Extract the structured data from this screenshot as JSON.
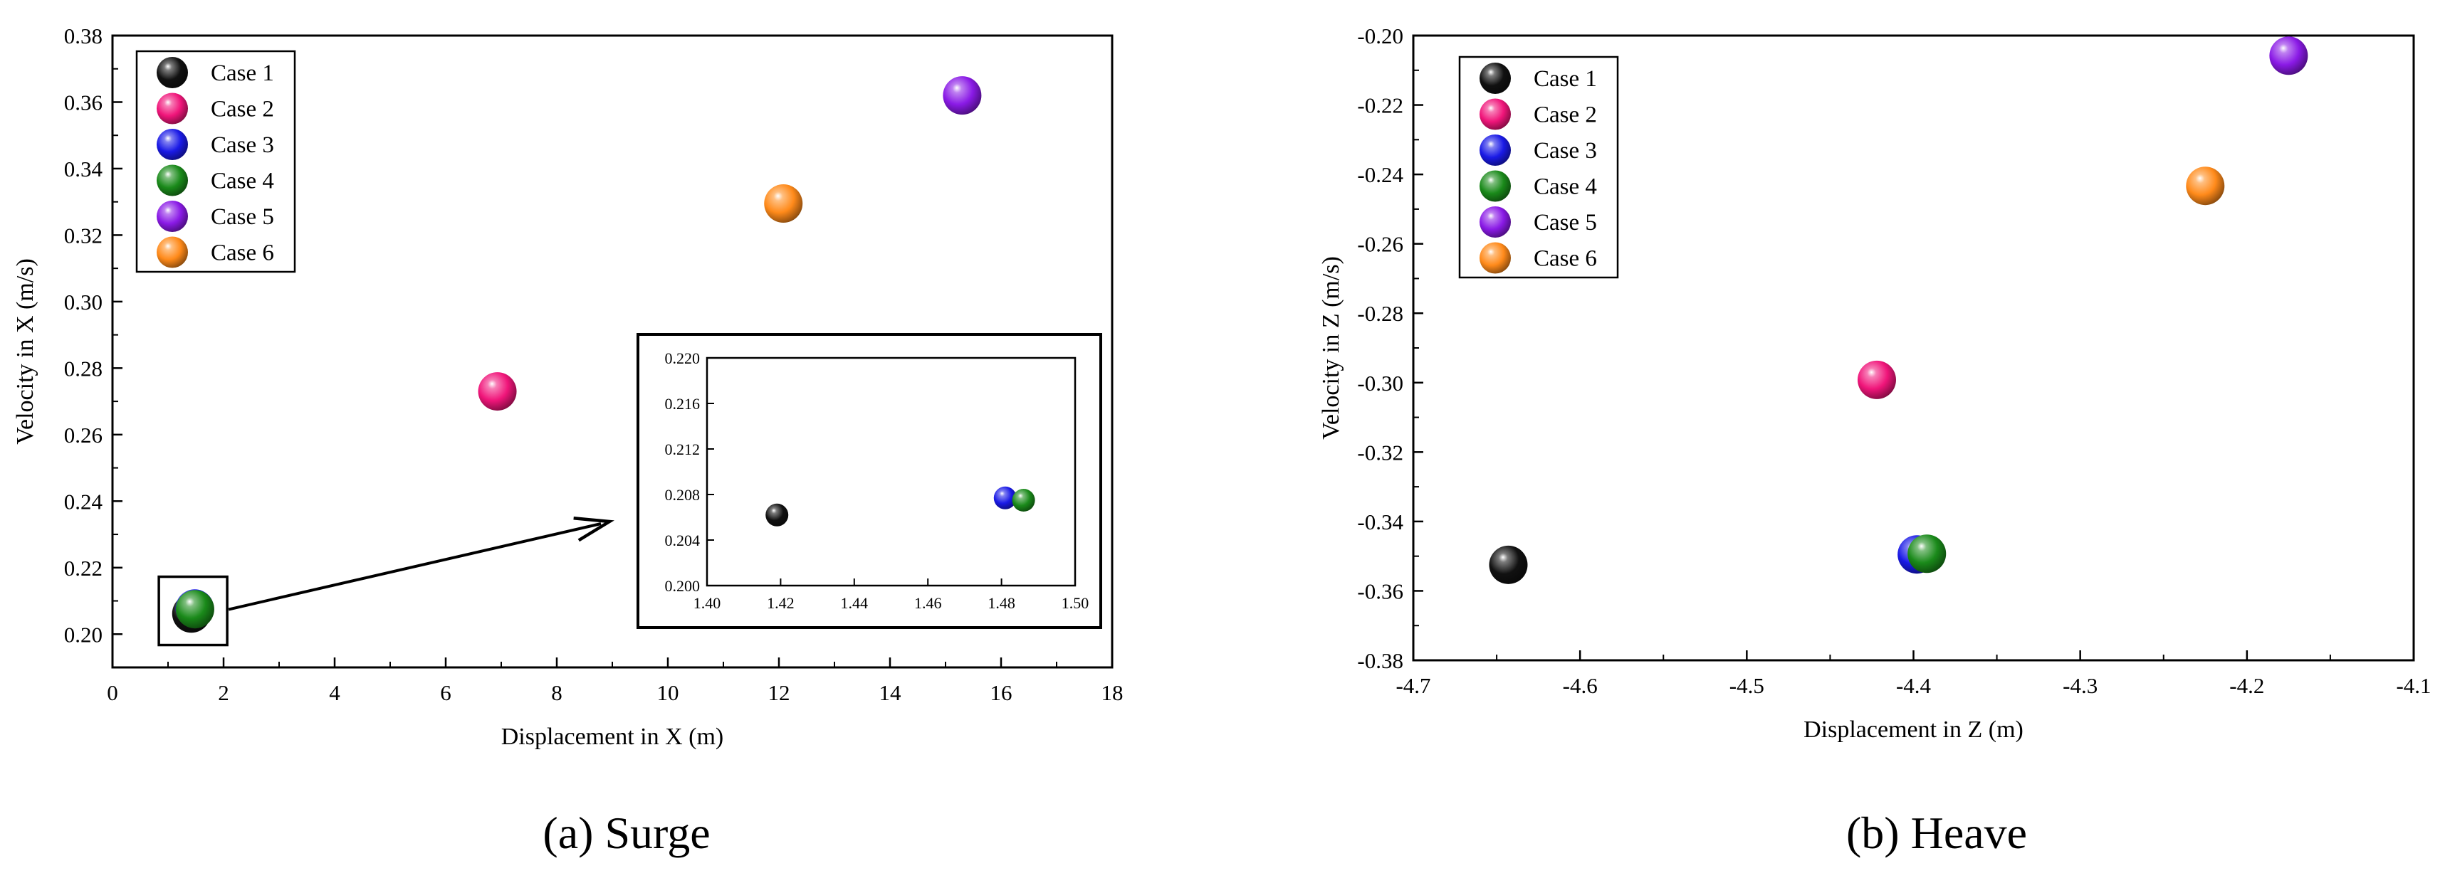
{
  "chart_data": [
    {
      "type": "scatter",
      "caption": "(a) Surge",
      "xlabel": "Displacement in X  (m)",
      "ylabel": "Velocity in X  (m/s)",
      "xlim": [
        0,
        18
      ],
      "ylim": [
        0.19,
        0.38
      ],
      "xticks": [
        0,
        2,
        4,
        6,
        8,
        10,
        12,
        14,
        16,
        18
      ],
      "yticks": [
        0.2,
        0.22,
        0.24,
        0.26,
        0.28,
        0.3,
        0.32,
        0.34,
        0.36,
        0.38
      ],
      "xtick_labels": [
        "0",
        "2",
        "4",
        "6",
        "8",
        "10",
        "12",
        "14",
        "16",
        "18"
      ],
      "ytick_labels": [
        "0.20",
        "0.22",
        "0.24",
        "0.26",
        "0.28",
        "0.30",
        "0.32",
        "0.34",
        "0.36",
        "0.38"
      ],
      "legend": "top-left",
      "series": [
        {
          "name": "Case 1",
          "color": "#111111",
          "x": 1.42,
          "y": 0.2062
        },
        {
          "name": "Case 2",
          "color": "#f0157a",
          "x": 6.93,
          "y": 0.273
        },
        {
          "name": "Case 3",
          "color": "#1a1ae6",
          "x": 1.481,
          "y": 0.2077
        },
        {
          "name": "Case 4",
          "color": "#1a8a1a",
          "x": 1.486,
          "y": 0.2075
        },
        {
          "name": "Case 5",
          "color": "#8a1ae6",
          "x": 15.3,
          "y": 0.362
        },
        {
          "name": "Case 6",
          "color": "#ff8a1a",
          "x": 12.08,
          "y": 0.3295
        }
      ],
      "inset": {
        "xlim": [
          1.4,
          1.5
        ],
        "ylim": [
          0.2,
          0.22
        ],
        "xticks": [
          1.4,
          1.42,
          1.44,
          1.46,
          1.48,
          1.5
        ],
        "yticks": [
          0.2,
          0.204,
          0.208,
          0.212,
          0.216,
          0.22
        ],
        "xtick_labels": [
          "1.40",
          "1.42",
          "1.44",
          "1.46",
          "1.48",
          "1.50"
        ],
        "ytick_labels": [
          "0.200",
          "0.204",
          "0.208",
          "0.212",
          "0.216",
          "0.220"
        ],
        "points": [
          {
            "name": "Case 1",
            "x": 1.419,
            "y": 0.2062
          },
          {
            "name": "Case 3",
            "x": 1.481,
            "y": 0.2077
          },
          {
            "name": "Case 4",
            "x": 1.486,
            "y": 0.2075
          }
        ]
      }
    },
    {
      "type": "scatter",
      "caption": "(b) Heave",
      "xlabel": "Displacement in Z  (m)",
      "ylabel": "Velocity in Z  (m/s)",
      "xlim": [
        -4.7,
        -4.1
      ],
      "ylim": [
        -0.38,
        -0.2
      ],
      "xticks": [
        -4.7,
        -4.6,
        -4.5,
        -4.4,
        -4.3,
        -4.2,
        -4.1
      ],
      "yticks": [
        -0.38,
        -0.36,
        -0.34,
        -0.32,
        -0.3,
        -0.28,
        -0.26,
        -0.24,
        -0.22,
        -0.2
      ],
      "xtick_labels": [
        "-4.7",
        "-4.6",
        "-4.5",
        "-4.4",
        "-4.3",
        "-4.2",
        "-4.1"
      ],
      "ytick_labels": [
        "-0.38",
        "-0.36",
        "-0.34",
        "-0.32",
        "-0.30",
        "-0.28",
        "-0.26",
        "-0.24",
        "-0.22",
        "-0.20"
      ],
      "legend": "top-left",
      "series": [
        {
          "name": "Case 1",
          "color": "#111111",
          "x": -4.643,
          "y": -0.3525
        },
        {
          "name": "Case 2",
          "color": "#f0157a",
          "x": -4.422,
          "y": -0.2992
        },
        {
          "name": "Case 3",
          "color": "#1a1ae6",
          "x": -4.398,
          "y": -0.3495
        },
        {
          "name": "Case 4",
          "color": "#1a8a1a",
          "x": -4.392,
          "y": -0.3493
        },
        {
          "name": "Case 5",
          "color": "#8a1ae6",
          "x": -4.175,
          "y": -0.2058
        },
        {
          "name": "Case 6",
          "color": "#ff8a1a",
          "x": -4.225,
          "y": -0.2433
        }
      ]
    }
  ]
}
